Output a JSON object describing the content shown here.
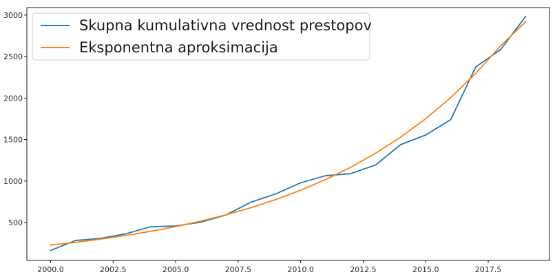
{
  "chart_data": {
    "type": "line",
    "title": "",
    "xlabel": "",
    "ylabel": "",
    "xlim": [
      1999.05,
      2019.95
    ],
    "ylim": [
      45,
      3090
    ],
    "x_ticks": [
      2000.0,
      2002.5,
      2005.0,
      2007.5,
      2010.0,
      2012.5,
      2015.0,
      2017.5
    ],
    "x_tick_labels": [
      "2000.0",
      "2002.5",
      "2005.0",
      "2007.5",
      "2010.0",
      "2012.5",
      "2015.0",
      "2017.5"
    ],
    "y_ticks": [
      500,
      1000,
      1500,
      2000,
      2500,
      3000
    ],
    "y_tick_labels": [
      "500",
      "1000",
      "1500",
      "2000",
      "2500",
      "3000"
    ],
    "grid": false,
    "legend_position": "upper-left",
    "series": [
      {
        "name": "Skupna kumulativna vrednost prestopov",
        "color": "#1f77b4",
        "x": [
          2000,
          2001,
          2002,
          2003,
          2004,
          2005,
          2006,
          2007,
          2008,
          2009,
          2010,
          2011,
          2012,
          2013,
          2014,
          2015,
          2016,
          2017,
          2018,
          2019
        ],
        "y": [
          165,
          285,
          310,
          365,
          450,
          460,
          505,
          590,
          745,
          845,
          980,
          1065,
          1090,
          1195,
          1440,
          1555,
          1740,
          2375,
          2585,
          2985
        ]
      },
      {
        "name": "Eksponentna aproksimacija",
        "color": "#ff7f0e",
        "x": [
          2000,
          2001,
          2002,
          2003,
          2004,
          2005,
          2006,
          2007,
          2008,
          2009,
          2010,
          2011,
          2012,
          2013,
          2014,
          2015,
          2016,
          2017,
          2018,
          2019
        ],
        "y": [
          230,
          263,
          301,
          345,
          395,
          452,
          518,
          593,
          679,
          777,
          890,
          1019,
          1167,
          1336,
          1530,
          1752,
          2006,
          2297,
          2630,
          2920
        ]
      }
    ]
  }
}
